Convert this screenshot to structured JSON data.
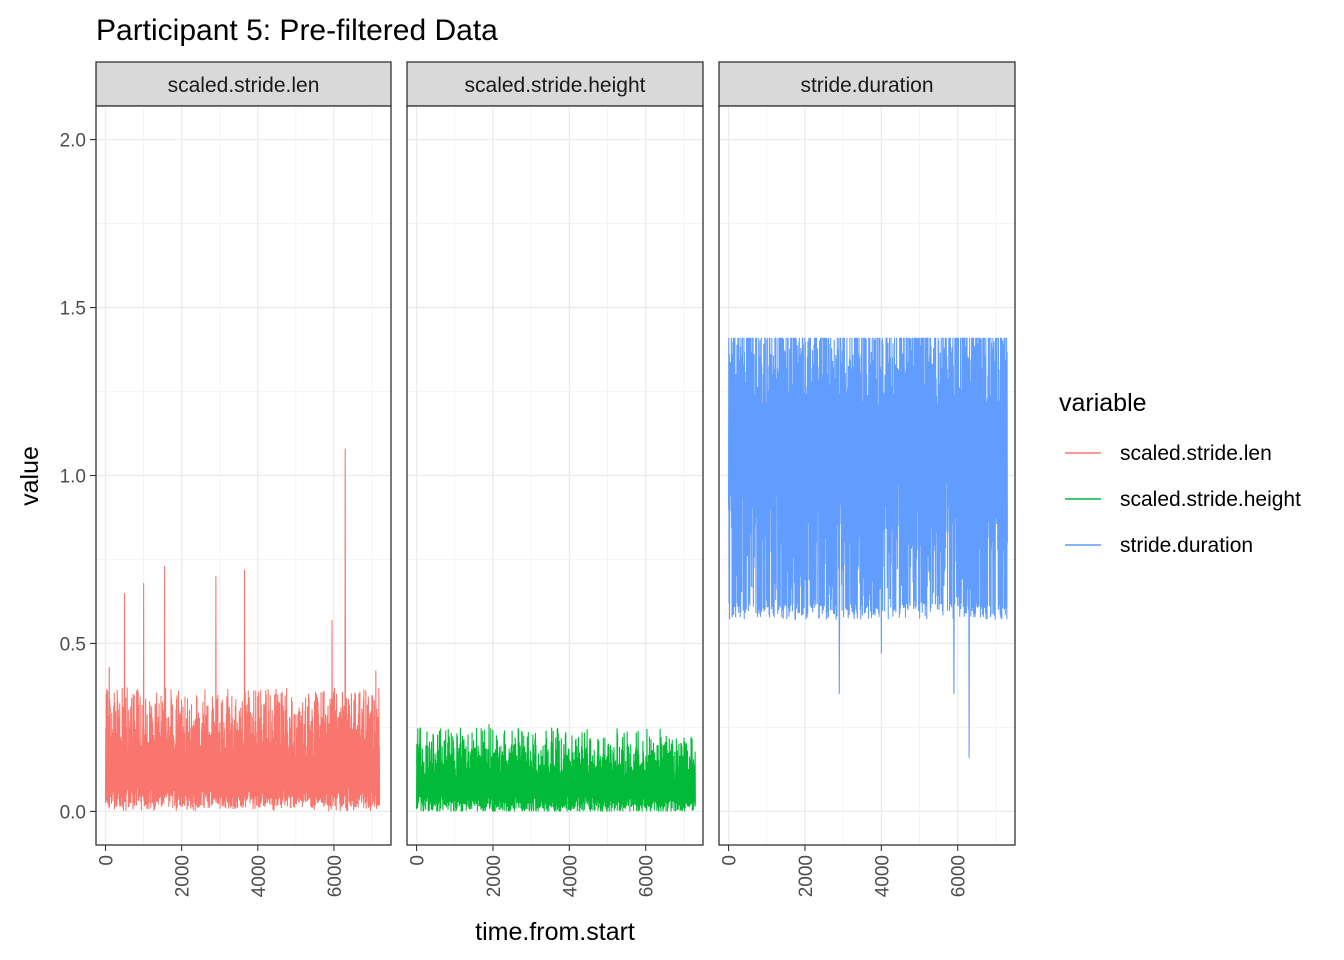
{
  "chart_data": {
    "type": "line",
    "title": "Participant 5: Pre-filtered Data",
    "xlabel": "time.from.start",
    "ylabel": "value",
    "xlim": [
      -250,
      7500
    ],
    "ylim": [
      -0.1,
      2.1
    ],
    "x_ticks": [
      0,
      2000,
      4000,
      6000
    ],
    "y_ticks": [
      0.0,
      0.5,
      1.0,
      1.5,
      2.0
    ],
    "x_tick_labels": [
      "0",
      "2000",
      "4000",
      "6000"
    ],
    "y_tick_labels": [
      "0.0",
      "0.5",
      "1.0",
      "1.5",
      "2.0"
    ],
    "grid": true,
    "legend": {
      "title": "variable",
      "position": "right",
      "entries": [
        "scaled.stride.len",
        "scaled.stride.height",
        "stride.duration"
      ]
    },
    "facets": [
      {
        "label": "scaled.stride.len",
        "color": "#F8766D",
        "x_range": [
          0,
          7200
        ],
        "base_low": 0.03,
        "base_high": 0.32,
        "min": 0.0,
        "spikes": [
          [
            100,
            0.43
          ],
          [
            500,
            0.65
          ],
          [
            1000,
            0.68
          ],
          [
            1550,
            0.73
          ],
          [
            2900,
            0.7
          ],
          [
            3650,
            0.72
          ],
          [
            5950,
            0.57
          ],
          [
            6300,
            1.08
          ],
          [
            7100,
            0.42
          ]
        ]
      },
      {
        "label": "scaled.stride.height",
        "color": "#00BA38",
        "x_range": [
          0,
          7300
        ],
        "base_low": 0.01,
        "base_high": 0.2,
        "min": 0.0,
        "spikes": [
          [
            600,
            0.24
          ],
          [
            1900,
            0.26
          ],
          [
            2500,
            0.24
          ],
          [
            5800,
            0.24
          ],
          [
            7000,
            0.22
          ]
        ]
      },
      {
        "label": "stride.duration",
        "color": "#619CFF",
        "x_range": [
          0,
          7300
        ],
        "base_low": 0.62,
        "base_high": 1.41,
        "min": 0.16,
        "spikes": [
          [
            2900,
            0.35
          ],
          [
            4000,
            0.47
          ],
          [
            5900,
            0.35
          ],
          [
            6300,
            0.16
          ]
        ]
      }
    ]
  }
}
